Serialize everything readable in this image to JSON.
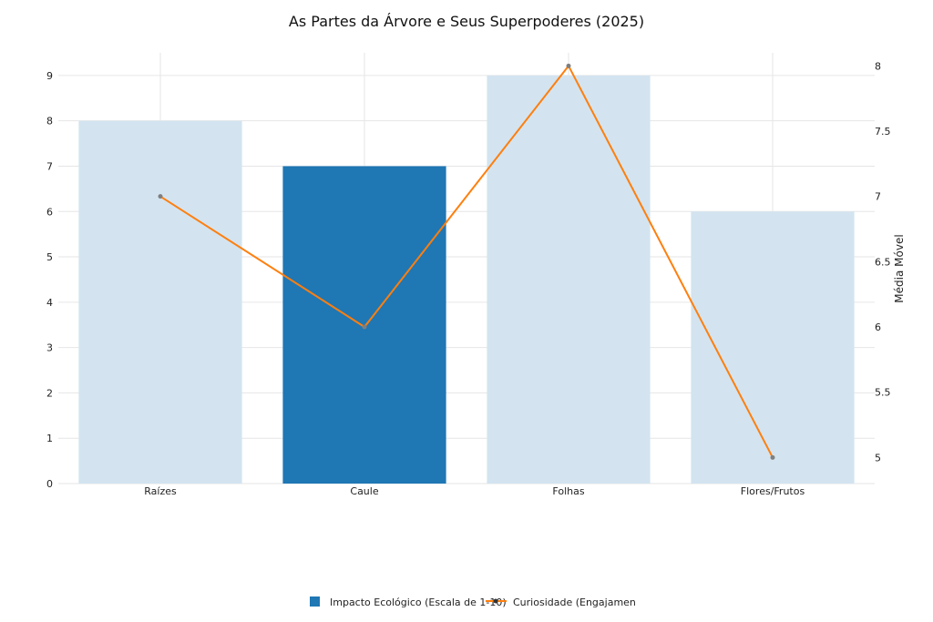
{
  "chart_data": {
    "type": "bar+line",
    "title": "As Partes da Árvore e Seus Superpoderes (2025)",
    "categories": [
      "Raízes",
      "Caule",
      "Folhas",
      "Flores/Frutos"
    ],
    "series": [
      {
        "name": "Impacto Ecológico (Escala de 1-10)",
        "type": "bar",
        "axis": "left",
        "values": [
          8,
          7,
          9,
          6
        ],
        "color": "#1f77b4",
        "faded_color": "#d3e4f0",
        "highlighted": "Caule"
      },
      {
        "name": "Curiosidade (Engajamento",
        "type": "line",
        "axis": "right",
        "values": [
          7,
          6,
          8,
          5
        ],
        "color": "#ff7f0e",
        "marker_color": "#7f7f7f"
      }
    ],
    "y_left": {
      "label": "",
      "range": [
        0,
        9.5
      ],
      "ticks": [
        0,
        1,
        2,
        3,
        4,
        5,
        6,
        7,
        8,
        9
      ]
    },
    "y_right": {
      "label": "Média Móvel",
      "range": [
        4.8,
        8.1
      ],
      "ticks": [
        "5",
        "5.5",
        "6",
        "6.5",
        "7",
        "7.5",
        "8"
      ]
    },
    "grid": true,
    "legend_position": "bottom-center"
  }
}
